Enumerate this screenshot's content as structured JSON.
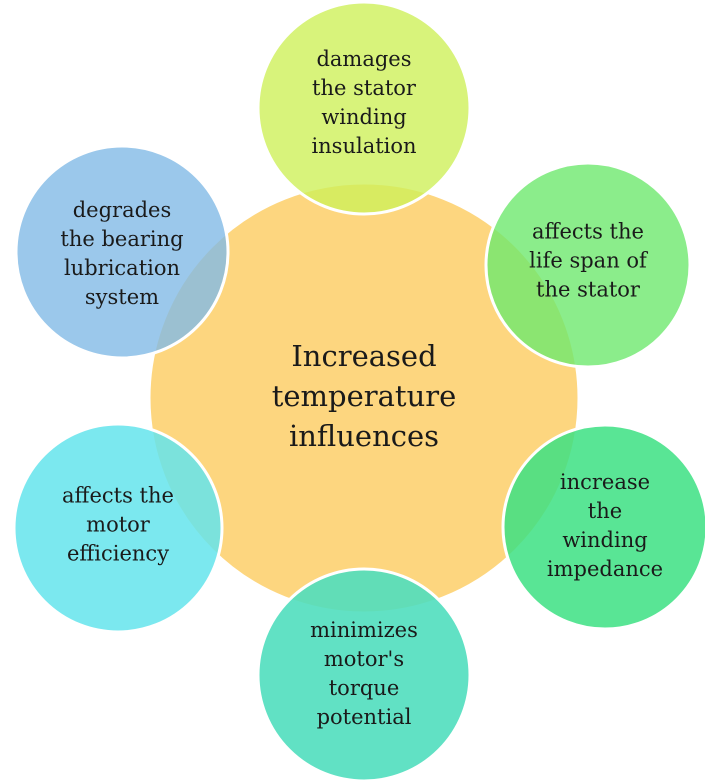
{
  "center": {
    "lines": [
      "Increased",
      "temperature",
      "influences"
    ]
  },
  "nodes": [
    {
      "lines": [
        "damages",
        "the stator",
        "winding",
        "insulation"
      ]
    },
    {
      "lines": [
        "affects the",
        "life span of",
        "the stator"
      ]
    },
    {
      "lines": [
        "increase",
        "the",
        "winding",
        "impedance"
      ]
    },
    {
      "lines": [
        "minimizes",
        "motor's",
        "torque",
        "potential"
      ]
    },
    {
      "lines": [
        "affects the",
        "motor",
        "efficiency"
      ]
    },
    {
      "lines": [
        "degrades",
        "the bearing",
        "lubrication",
        "system"
      ]
    }
  ]
}
